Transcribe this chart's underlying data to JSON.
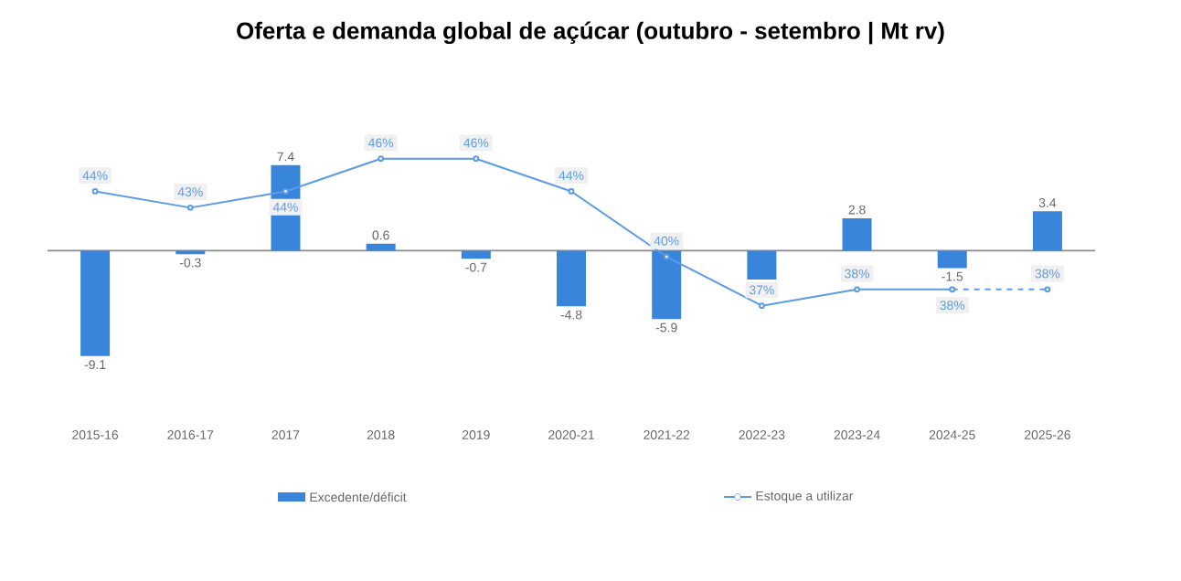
{
  "chart_data": {
    "type": "bar",
    "title": "Oferta e demanda global de açúcar (outubro - setembro | Mt rv)",
    "categories": [
      "2015-16",
      "2016-17",
      "2017",
      "2018",
      "2019",
      "2020-21",
      "2021-22",
      "2022-23",
      "2023-24",
      "2024-25",
      "2025-26"
    ],
    "series": [
      {
        "name": "Excedente/déficit",
        "color": "#3a85dc",
        "values": [
          -9.1,
          -0.3,
          7.4,
          0.6,
          -0.7,
          -4.8,
          -5.9,
          -2.5,
          2.8,
          -1.5,
          3.4
        ],
        "value_labels": [
          "-9.1",
          "-0.3",
          "7.4",
          "0.6",
          "-0.7",
          "-4.8",
          "-5.9",
          null,
          "2.8",
          "-1.5",
          "3.4"
        ]
      },
      {
        "name": "Estoque a utilizar",
        "type": "line",
        "axis": "y2",
        "color": "#5b9be8",
        "marker": "circle",
        "line_style": "solid",
        "values": [
          44,
          43,
          44,
          46,
          46,
          44,
          40,
          37,
          38,
          38,
          null
        ],
        "value_labels": [
          "44%",
          "43%",
          "44%",
          "46%",
          "46%",
          "44%",
          "40%",
          "37%",
          "38%",
          "38%",
          null
        ]
      },
      {
        "type": "line",
        "axis": "y2",
        "color": "#5b9be8",
        "marker": "circle",
        "line_style": "dashed",
        "values": [
          null,
          null,
          null,
          null,
          null,
          null,
          null,
          null,
          null,
          38,
          38
        ],
        "value_labels": [
          null,
          null,
          null,
          null,
          null,
          null,
          null,
          null,
          null,
          null,
          "38%"
        ]
      }
    ],
    "legend": "bottom",
    "tick_labels": "x"
  }
}
